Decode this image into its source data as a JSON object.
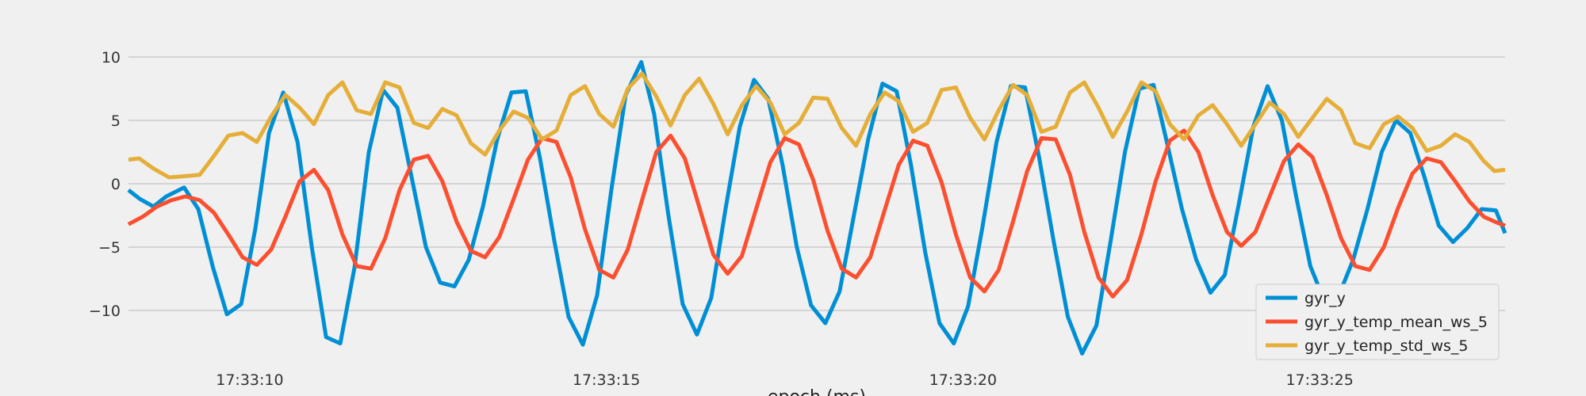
{
  "chart_data": {
    "type": "line",
    "title": "",
    "xlabel": "epoch (ms)",
    "ylabel": "",
    "x_unit": "seconds",
    "x_range": [
      8.3,
      27.6
    ],
    "x_ticks": [
      {
        "value": 10,
        "label": "17:33:10"
      },
      {
        "value": 15,
        "label": "17:33:15"
      },
      {
        "value": 20,
        "label": "17:33:20"
      },
      {
        "value": 25,
        "label": "17:33:25"
      }
    ],
    "ylim": [
      -13.5,
      11
    ],
    "y_ticks": [
      {
        "value": 10,
        "label": "10"
      },
      {
        "value": 5,
        "label": "5"
      },
      {
        "value": 0,
        "label": "0"
      },
      {
        "value": -5,
        "label": "−5"
      },
      {
        "value": -10,
        "label": "−10"
      }
    ],
    "grid": true,
    "legend_position": "bottom-right",
    "series": [
      {
        "name": "gyr_y",
        "color": "#008fd5",
        "points": [
          [
            8.3,
            -0.5
          ],
          [
            8.46,
            -1.2
          ],
          [
            8.65,
            -1.8
          ],
          [
            8.83,
            -1.0
          ],
          [
            9.08,
            -0.3
          ],
          [
            9.28,
            -2.0
          ],
          [
            9.48,
            -6.5
          ],
          [
            9.68,
            -10.3
          ],
          [
            9.88,
            -9.5
          ],
          [
            10.08,
            -3.5
          ],
          [
            10.27,
            4.0
          ],
          [
            10.47,
            7.2
          ],
          [
            10.67,
            3.3
          ],
          [
            10.87,
            -5.0
          ],
          [
            11.07,
            -12.1
          ],
          [
            11.27,
            -12.6
          ],
          [
            11.47,
            -6.6
          ],
          [
            11.67,
            2.5
          ],
          [
            11.87,
            7.4
          ],
          [
            12.07,
            6.0
          ],
          [
            12.27,
            0.5
          ],
          [
            12.47,
            -5.0
          ],
          [
            12.67,
            -7.8
          ],
          [
            12.87,
            -8.1
          ],
          [
            13.07,
            -6.0
          ],
          [
            13.27,
            -1.8
          ],
          [
            13.47,
            3.5
          ],
          [
            13.67,
            7.2
          ],
          [
            13.87,
            7.3
          ],
          [
            14.07,
            2.0
          ],
          [
            14.27,
            -4.5
          ],
          [
            14.47,
            -10.5
          ],
          [
            14.67,
            -12.7
          ],
          [
            14.87,
            -8.8
          ],
          [
            15.07,
            -0.5
          ],
          [
            15.27,
            7.0
          ],
          [
            15.49,
            9.6
          ],
          [
            15.67,
            5.5
          ],
          [
            15.87,
            -2.5
          ],
          [
            16.07,
            -9.5
          ],
          [
            16.27,
            -11.9
          ],
          [
            16.47,
            -9.0
          ],
          [
            16.67,
            -2.0
          ],
          [
            16.87,
            4.5
          ],
          [
            17.07,
            8.2
          ],
          [
            17.27,
            6.7
          ],
          [
            17.47,
            1.5
          ],
          [
            17.67,
            -5.0
          ],
          [
            17.87,
            -9.6
          ],
          [
            18.07,
            -11.0
          ],
          [
            18.27,
            -8.5
          ],
          [
            18.47,
            -2.5
          ],
          [
            18.67,
            3.5
          ],
          [
            18.87,
            7.9
          ],
          [
            19.07,
            7.3
          ],
          [
            19.27,
            1.5
          ],
          [
            19.47,
            -5.4
          ],
          [
            19.67,
            -11.0
          ],
          [
            19.87,
            -12.6
          ],
          [
            20.07,
            -9.7
          ],
          [
            20.27,
            -3.5
          ],
          [
            20.47,
            3.3
          ],
          [
            20.67,
            7.7
          ],
          [
            20.87,
            7.6
          ],
          [
            21.07,
            2.0
          ],
          [
            21.27,
            -4.5
          ],
          [
            21.47,
            -10.5
          ],
          [
            21.67,
            -13.4
          ],
          [
            21.87,
            -11.2
          ],
          [
            22.07,
            -4.5
          ],
          [
            22.27,
            2.5
          ],
          [
            22.47,
            7.5
          ],
          [
            22.67,
            7.8
          ],
          [
            22.87,
            3.0
          ],
          [
            23.07,
            -2.0
          ],
          [
            23.27,
            -6.0
          ],
          [
            23.47,
            -8.6
          ],
          [
            23.67,
            -7.2
          ],
          [
            23.87,
            -1.5
          ],
          [
            24.07,
            4.5
          ],
          [
            24.27,
            7.7
          ],
          [
            24.47,
            5.0
          ],
          [
            24.67,
            -1.0
          ],
          [
            24.87,
            -6.5
          ],
          [
            25.07,
            -9.3
          ],
          [
            25.27,
            -8.8
          ],
          [
            25.47,
            -6.0
          ],
          [
            25.67,
            -2.0
          ],
          [
            25.87,
            2.5
          ],
          [
            26.07,
            5.0
          ],
          [
            26.27,
            4.0
          ],
          [
            26.47,
            0.5
          ],
          [
            26.67,
            -3.3
          ],
          [
            26.87,
            -4.6
          ],
          [
            27.07,
            -3.5
          ],
          [
            27.27,
            -2.0
          ],
          [
            27.47,
            -2.1
          ],
          [
            27.6,
            -3.9
          ]
        ]
      },
      {
        "name": "gyr_y_temp_mean_ws_5",
        "color": "#fc4f30",
        "points": [
          [
            8.3,
            -3.2
          ],
          [
            8.5,
            -2.6
          ],
          [
            8.7,
            -1.8
          ],
          [
            8.9,
            -1.3
          ],
          [
            9.1,
            -1.0
          ],
          [
            9.3,
            -1.3
          ],
          [
            9.5,
            -2.3
          ],
          [
            9.7,
            -4.0
          ],
          [
            9.9,
            -5.8
          ],
          [
            10.1,
            -6.4
          ],
          [
            10.3,
            -5.2
          ],
          [
            10.5,
            -2.6
          ],
          [
            10.7,
            0.2
          ],
          [
            10.9,
            1.1
          ],
          [
            11.1,
            -0.5
          ],
          [
            11.3,
            -4.0
          ],
          [
            11.5,
            -6.5
          ],
          [
            11.7,
            -6.7
          ],
          [
            11.9,
            -4.3
          ],
          [
            12.1,
            -0.5
          ],
          [
            12.3,
            1.9
          ],
          [
            12.5,
            2.2
          ],
          [
            12.7,
            0.2
          ],
          [
            12.9,
            -3.0
          ],
          [
            13.1,
            -5.3
          ],
          [
            13.3,
            -5.8
          ],
          [
            13.5,
            -4.2
          ],
          [
            13.7,
            -1.2
          ],
          [
            13.9,
            1.9
          ],
          [
            14.1,
            3.6
          ],
          [
            14.3,
            3.3
          ],
          [
            14.5,
            0.5
          ],
          [
            14.7,
            -3.6
          ],
          [
            14.9,
            -6.8
          ],
          [
            15.1,
            -7.4
          ],
          [
            15.3,
            -5.2
          ],
          [
            15.5,
            -1.3
          ],
          [
            15.7,
            2.5
          ],
          [
            15.9,
            3.8
          ],
          [
            16.1,
            2.0
          ],
          [
            16.3,
            -1.8
          ],
          [
            16.5,
            -5.6
          ],
          [
            16.7,
            -7.1
          ],
          [
            16.9,
            -5.7
          ],
          [
            17.1,
            -2.0
          ],
          [
            17.3,
            1.7
          ],
          [
            17.5,
            3.6
          ],
          [
            17.7,
            3.1
          ],
          [
            17.9,
            0.3
          ],
          [
            18.1,
            -3.7
          ],
          [
            18.3,
            -6.7
          ],
          [
            18.5,
            -7.4
          ],
          [
            18.7,
            -5.8
          ],
          [
            18.9,
            -2.1
          ],
          [
            19.1,
            1.5
          ],
          [
            19.3,
            3.4
          ],
          [
            19.5,
            3.0
          ],
          [
            19.7,
            0.1
          ],
          [
            19.9,
            -4.0
          ],
          [
            20.1,
            -7.4
          ],
          [
            20.3,
            -8.5
          ],
          [
            20.5,
            -6.8
          ],
          [
            20.7,
            -3.0
          ],
          [
            20.9,
            1.0
          ],
          [
            21.1,
            3.6
          ],
          [
            21.3,
            3.5
          ],
          [
            21.5,
            0.7
          ],
          [
            21.7,
            -3.8
          ],
          [
            21.9,
            -7.4
          ],
          [
            22.1,
            -8.9
          ],
          [
            22.3,
            -7.6
          ],
          [
            22.5,
            -4.0
          ],
          [
            22.7,
            0.2
          ],
          [
            22.9,
            3.4
          ],
          [
            23.1,
            4.2
          ],
          [
            23.3,
            2.5
          ],
          [
            23.5,
            -0.9
          ],
          [
            23.7,
            -3.8
          ],
          [
            23.9,
            -4.9
          ],
          [
            24.1,
            -3.8
          ],
          [
            24.3,
            -1.0
          ],
          [
            24.5,
            1.8
          ],
          [
            24.7,
            3.1
          ],
          [
            24.9,
            2.1
          ],
          [
            25.1,
            -0.9
          ],
          [
            25.3,
            -4.3
          ],
          [
            25.5,
            -6.5
          ],
          [
            25.7,
            -6.8
          ],
          [
            25.9,
            -5.0
          ],
          [
            26.1,
            -1.9
          ],
          [
            26.3,
            0.8
          ],
          [
            26.5,
            2.0
          ],
          [
            26.7,
            1.7
          ],
          [
            26.9,
            0.2
          ],
          [
            27.1,
            -1.4
          ],
          [
            27.3,
            -2.6
          ],
          [
            27.5,
            -3.1
          ],
          [
            27.6,
            -3.3
          ]
        ]
      },
      {
        "name": "gyr_y_temp_std_ws_5",
        "color": "#e5ae38",
        "points": [
          [
            8.3,
            1.9
          ],
          [
            8.45,
            2.0
          ],
          [
            8.65,
            1.2
          ],
          [
            8.87,
            0.5
          ],
          [
            9.1,
            0.6
          ],
          [
            9.3,
            0.7
          ],
          [
            9.5,
            2.2
          ],
          [
            9.7,
            3.8
          ],
          [
            9.9,
            4.0
          ],
          [
            10.1,
            3.3
          ],
          [
            10.3,
            5.3
          ],
          [
            10.5,
            7.0
          ],
          [
            10.7,
            6.0
          ],
          [
            10.9,
            4.7
          ],
          [
            11.1,
            7.0
          ],
          [
            11.3,
            8.0
          ],
          [
            11.5,
            5.8
          ],
          [
            11.7,
            5.5
          ],
          [
            11.9,
            8.0
          ],
          [
            12.1,
            7.6
          ],
          [
            12.3,
            4.8
          ],
          [
            12.5,
            4.4
          ],
          [
            12.7,
            5.9
          ],
          [
            12.9,
            5.4
          ],
          [
            13.1,
            3.2
          ],
          [
            13.3,
            2.3
          ],
          [
            13.5,
            4.2
          ],
          [
            13.7,
            5.7
          ],
          [
            13.9,
            5.2
          ],
          [
            14.1,
            3.5
          ],
          [
            14.3,
            4.2
          ],
          [
            14.5,
            7.0
          ],
          [
            14.7,
            7.7
          ],
          [
            14.9,
            5.5
          ],
          [
            15.1,
            4.5
          ],
          [
            15.3,
            7.5
          ],
          [
            15.5,
            8.7
          ],
          [
            15.7,
            6.9
          ],
          [
            15.9,
            4.6
          ],
          [
            16.1,
            7.0
          ],
          [
            16.3,
            8.3
          ],
          [
            16.5,
            6.3
          ],
          [
            16.7,
            3.9
          ],
          [
            16.9,
            6.2
          ],
          [
            17.1,
            7.7
          ],
          [
            17.3,
            6.4
          ],
          [
            17.5,
            3.9
          ],
          [
            17.7,
            4.8
          ],
          [
            17.9,
            6.8
          ],
          [
            18.1,
            6.7
          ],
          [
            18.3,
            4.4
          ],
          [
            18.5,
            3.0
          ],
          [
            18.7,
            5.5
          ],
          [
            18.9,
            7.2
          ],
          [
            19.1,
            6.5
          ],
          [
            19.3,
            4.1
          ],
          [
            19.5,
            4.8
          ],
          [
            19.7,
            7.4
          ],
          [
            19.9,
            7.6
          ],
          [
            20.1,
            5.2
          ],
          [
            20.3,
            3.5
          ],
          [
            20.5,
            5.8
          ],
          [
            20.7,
            7.8
          ],
          [
            20.9,
            7.0
          ],
          [
            21.1,
            4.1
          ],
          [
            21.3,
            4.5
          ],
          [
            21.5,
            7.2
          ],
          [
            21.7,
            8.0
          ],
          [
            21.9,
            6.0
          ],
          [
            22.1,
            3.7
          ],
          [
            22.3,
            5.7
          ],
          [
            22.5,
            8.0
          ],
          [
            22.7,
            7.3
          ],
          [
            22.9,
            4.7
          ],
          [
            23.1,
            3.5
          ],
          [
            23.3,
            5.4
          ],
          [
            23.5,
            6.2
          ],
          [
            23.7,
            4.7
          ],
          [
            23.9,
            3.0
          ],
          [
            24.1,
            4.7
          ],
          [
            24.3,
            6.4
          ],
          [
            24.5,
            5.5
          ],
          [
            24.7,
            3.7
          ],
          [
            24.9,
            5.2
          ],
          [
            25.1,
            6.7
          ],
          [
            25.3,
            5.8
          ],
          [
            25.5,
            3.2
          ],
          [
            25.7,
            2.8
          ],
          [
            25.9,
            4.7
          ],
          [
            26.1,
            5.3
          ],
          [
            26.3,
            4.4
          ],
          [
            26.5,
            2.6
          ],
          [
            26.7,
            3.0
          ],
          [
            26.9,
            3.9
          ],
          [
            27.1,
            3.3
          ],
          [
            27.3,
            1.8
          ],
          [
            27.45,
            1.0
          ],
          [
            27.6,
            1.1
          ]
        ]
      }
    ]
  }
}
